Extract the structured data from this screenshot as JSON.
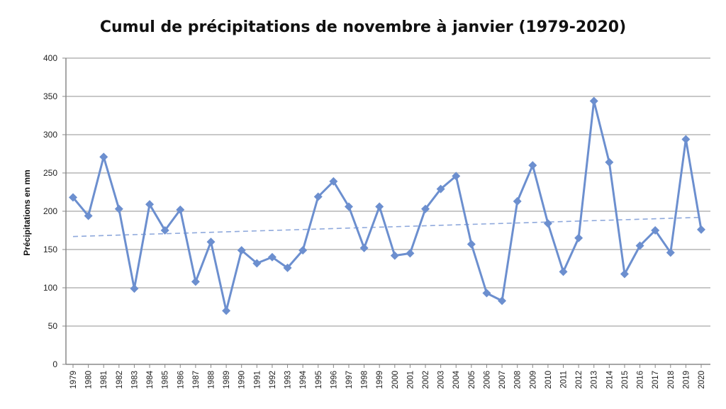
{
  "chart_data": {
    "type": "line",
    "title": "Cumul de précipitations de novembre à janvier (1979-2020)",
    "xlabel": "",
    "ylabel": "Précipitations en mm",
    "ylim": [
      0,
      400
    ],
    "yticks": [
      0,
      50,
      100,
      150,
      200,
      250,
      300,
      350,
      400
    ],
    "grid": true,
    "categories": [
      "1979",
      "1980",
      "1981",
      "1982",
      "1983",
      "1984",
      "1985",
      "1986",
      "1987",
      "1988",
      "1989",
      "1990",
      "1991",
      "1992",
      "1993",
      "1994",
      "1995",
      "1996",
      "1997",
      "1998",
      "1999",
      "2000",
      "2001",
      "2002",
      "2003",
      "2004",
      "2005",
      "2006",
      "2007",
      "2008",
      "2009",
      "2010",
      "2011",
      "2012",
      "2013",
      "2014",
      "2015",
      "2016",
      "2017",
      "2018",
      "2019",
      "2020"
    ],
    "series": [
      {
        "values": [
          218,
          194,
          271,
          203,
          99,
          209,
          175,
          202,
          108,
          160,
          70,
          149,
          132,
          140,
          126,
          149,
          219,
          239,
          206,
          152,
          206,
          142,
          145,
          203,
          229,
          246,
          157,
          93,
          83,
          213,
          260,
          184,
          121,
          165,
          344,
          264,
          118,
          155,
          175,
          146,
          294,
          176
        ],
        "color": "#6c8fcf"
      }
    ],
    "trendline": {
      "type": "linear",
      "start": 167,
      "end": 192,
      "color": "#8fa9dc"
    }
  }
}
